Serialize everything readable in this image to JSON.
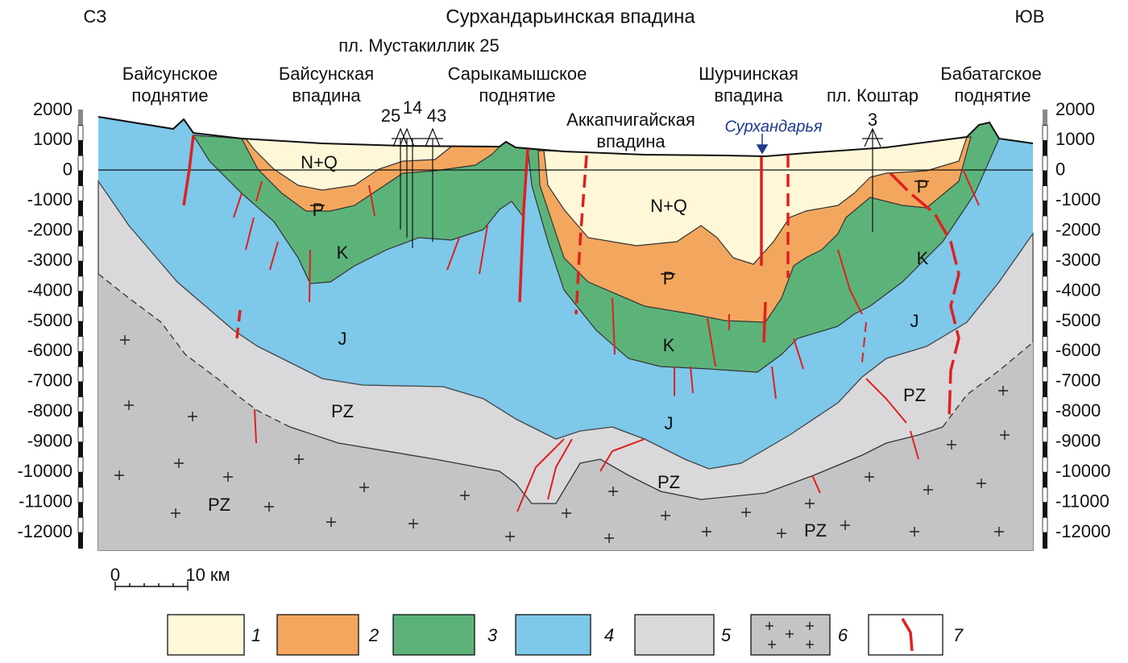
{
  "header": {
    "left": "СЗ",
    "title": "Сурхандарьинская впадина",
    "right": "ЮВ",
    "field": "пл. Мустакиллик 25"
  },
  "structures": [
    {
      "lines": [
        "Байсунское",
        "поднятие"
      ]
    },
    {
      "lines": [
        "Байсунская",
        "впадина"
      ]
    },
    {
      "lines": [
        "Сарыкамышское",
        "поднятие"
      ]
    },
    {
      "lines": [
        "Аккапчигайская",
        "впадина"
      ]
    },
    {
      "lines": [
        "Шурчинская",
        "впадина"
      ]
    },
    {
      "lines": [
        "Бабатагское",
        "поднятие"
      ]
    }
  ],
  "koshtar": "пл. Коштар",
  "river": "Сурхандарья",
  "wells": [
    "25",
    "14",
    "43",
    "3"
  ],
  "depth_ticks": [
    2000,
    1000,
    0,
    -1000,
    -2000,
    -3000,
    -4000,
    -5000,
    -6000,
    -7000,
    -8000,
    -9000,
    -10000,
    -11000,
    -12000
  ],
  "layer_labels": [
    "N+Q",
    "P",
    "K",
    "N+Q",
    "P",
    "K",
    "K",
    "P",
    "J",
    "J",
    "J",
    "PZ",
    "PZ",
    "PZ",
    "PZ",
    "PZ"
  ],
  "scale": {
    "zero": "0",
    "ten": "10 км"
  },
  "legend": [
    "1",
    "2",
    "3",
    "4",
    "5",
    "6",
    "7"
  ]
}
